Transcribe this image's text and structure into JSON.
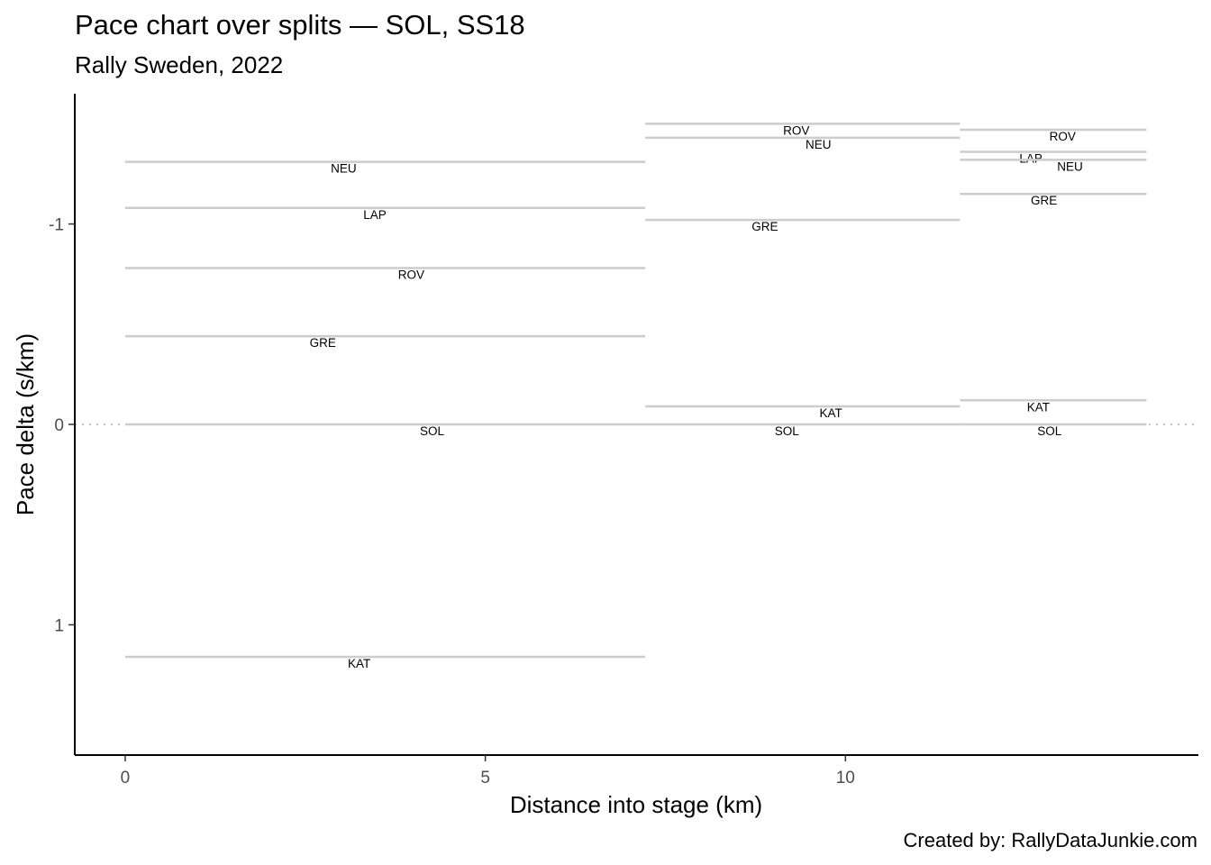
{
  "title": "Pace chart over splits — SOL, SS18",
  "subtitle": "Rally Sweden, 2022",
  "caption": "Created by: RallyDataJunkie.com",
  "chart_data": {
    "type": "line",
    "title": "Pace chart over splits — SOL, SS18",
    "subtitle": "Rally Sweden, 2022",
    "xlabel": "Distance into stage (km)",
    "ylabel": "Pace delta (s/km)",
    "xlim": [
      -0.7,
      14.9
    ],
    "ylim": [
      1.65,
      -1.65
    ],
    "y_reversed": true,
    "x_ticks": [
      0,
      5,
      10
    ],
    "y_ticks": [
      -1,
      0,
      1
    ],
    "reference_line": {
      "y": 0,
      "style": "dotted"
    },
    "splits": [
      {
        "start": 0,
        "end": 7.22,
        "segments": [
          {
            "driver": "NEU",
            "pace": -1.31
          },
          {
            "driver": "LAP",
            "pace": -1.08
          },
          {
            "driver": "ROV",
            "pace": -0.78
          },
          {
            "driver": "GRE",
            "pace": -0.44
          },
          {
            "driver": "SOL",
            "pace": 0
          },
          {
            "driver": "KAT",
            "pace": 1.16
          }
        ]
      },
      {
        "start": 7.22,
        "end": 11.59,
        "segments": [
          {
            "driver": "ROV",
            "pace": -1.5
          },
          {
            "driver": "NEU",
            "pace": -1.43
          },
          {
            "driver": "GRE",
            "pace": -1.02
          },
          {
            "driver": "KAT",
            "pace": -0.09
          },
          {
            "driver": "SOL",
            "pace": 0
          }
        ]
      },
      {
        "start": 11.59,
        "end": 14.18,
        "segments": [
          {
            "driver": "ROV",
            "pace": -1.47
          },
          {
            "driver": "LAP",
            "pace": -1.36
          },
          {
            "driver": "NEU",
            "pace": -1.32
          },
          {
            "driver": "GRE",
            "pace": -1.15
          },
          {
            "driver": "KAT",
            "pace": -0.12
          },
          {
            "driver": "SOL",
            "pace": 0
          }
        ]
      }
    ]
  }
}
